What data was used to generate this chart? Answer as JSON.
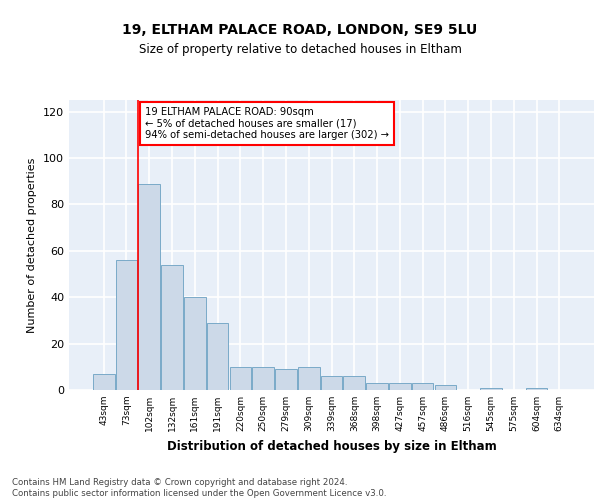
{
  "title1": "19, ELTHAM PALACE ROAD, LONDON, SE9 5LU",
  "title2": "Size of property relative to detached houses in Eltham",
  "xlabel": "Distribution of detached houses by size in Eltham",
  "ylabel": "Number of detached properties",
  "categories": [
    "43sqm",
    "73sqm",
    "102sqm",
    "132sqm",
    "161sqm",
    "191sqm",
    "220sqm",
    "250sqm",
    "279sqm",
    "309sqm",
    "339sqm",
    "368sqm",
    "398sqm",
    "427sqm",
    "457sqm",
    "486sqm",
    "516sqm",
    "545sqm",
    "575sqm",
    "604sqm",
    "634sqm"
  ],
  "values": [
    7,
    56,
    89,
    54,
    40,
    29,
    10,
    10,
    9,
    10,
    6,
    6,
    3,
    3,
    3,
    2,
    0,
    1,
    0,
    1,
    0
  ],
  "bar_color": "#ccd9e8",
  "bar_edge_color": "#7aaac8",
  "red_line_x": 1.5,
  "annotation_text": "19 ELTHAM PALACE ROAD: 90sqm\n← 5% of detached houses are smaller (17)\n94% of semi-detached houses are larger (302) →",
  "annotation_box_color": "white",
  "annotation_box_edge_color": "red",
  "ylim": [
    0,
    125
  ],
  "yticks": [
    0,
    20,
    40,
    60,
    80,
    100,
    120
  ],
  "background_color": "#e8eff8",
  "grid_color": "white",
  "footer": "Contains HM Land Registry data © Crown copyright and database right 2024.\nContains public sector information licensed under the Open Government Licence v3.0."
}
